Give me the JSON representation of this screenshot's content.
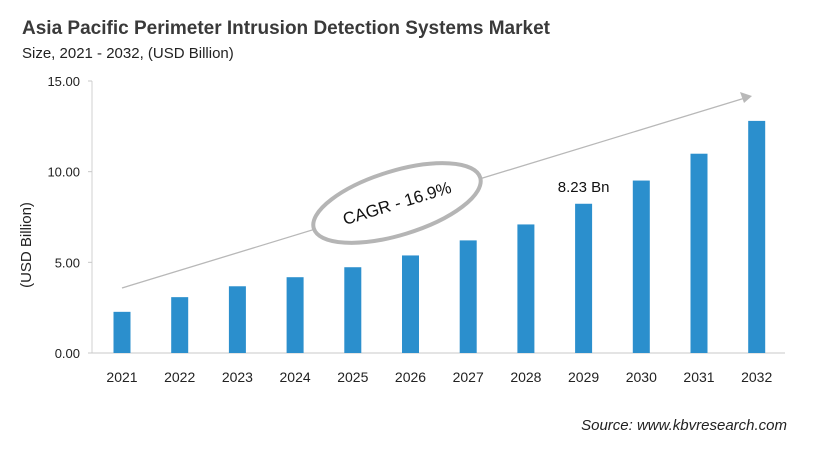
{
  "chart_data": {
    "type": "bar",
    "title": "Asia Pacific Perimeter Intrusion Detection Systems Market",
    "subtitle": "Size, 2021 - 2032, (USD Billion)",
    "xlabel": "",
    "ylabel": "(USD Billion)",
    "ylim": [
      0,
      15
    ],
    "yticks": [
      "0.00",
      "5.00",
      "10.00",
      "15.00"
    ],
    "categories": [
      "2021",
      "2022",
      "2023",
      "2024",
      "2025",
      "2026",
      "2027",
      "2028",
      "2029",
      "2030",
      "2031",
      "2032"
    ],
    "values": [
      2.27,
      3.08,
      3.68,
      4.18,
      4.73,
      5.38,
      6.21,
      7.09,
      8.23,
      9.51,
      10.99,
      12.8
    ],
    "bar_color": "#2b8fcd",
    "grid": false,
    "annotations": {
      "cagr": "CAGR - 16.9%",
      "data_label": "8.23 Bn",
      "data_label_category": "2029"
    },
    "source": "Source: www.kbvresearch.com"
  }
}
